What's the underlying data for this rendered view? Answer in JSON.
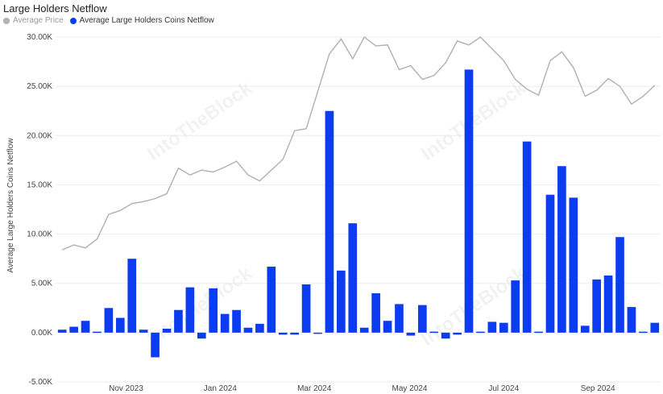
{
  "chart_data": {
    "type": "bar",
    "title": "Large Holders Netflow",
    "ylabel": "Average Large Holders Coins Netflow",
    "ylim": [
      -5000,
      30000
    ],
    "y_ticks": [
      "-5.00K",
      "0.00K",
      "5.00K",
      "10.00K",
      "15.00K",
      "20.00K",
      "25.00K",
      "30.00K"
    ],
    "y_tick_values": [
      -5000,
      0,
      5000,
      10000,
      15000,
      20000,
      25000,
      30000
    ],
    "x_ticks": [
      "Nov 2023",
      "Jan 2024",
      "Mar 2024",
      "May 2024",
      "Jul 2024",
      "Sep 2024"
    ],
    "x_tick_index": [
      5.5,
      13.6,
      21.7,
      29.9,
      38.0,
      46.1
    ],
    "legend": [
      {
        "name": "Average Price",
        "color": "#b0b0b0"
      },
      {
        "name": "Average Large Holders Coins Netflow",
        "color": "#0b3cf0"
      }
    ],
    "watermark": "IntoTheBlock",
    "series": [
      {
        "name": "Average Large Holders Coins Netflow",
        "kind": "bar",
        "color": "#0b3cf0",
        "values": [
          300,
          600,
          1200,
          100,
          2500,
          1500,
          7500,
          300,
          -2500,
          400,
          2300,
          4600,
          -600,
          4500,
          1900,
          2300,
          500,
          900,
          6700,
          -200,
          -200,
          4900,
          -100,
          22500,
          6300,
          11100,
          500,
          4000,
          1200,
          2900,
          -300,
          2800,
          100,
          -600,
          -200,
          26700,
          100,
          1100,
          1000,
          5300,
          19400,
          100,
          14000,
          16900,
          13700,
          700,
          5400,
          5800,
          9700,
          2600,
          100,
          1000
        ]
      },
      {
        "name": "Average Price",
        "kind": "line",
        "color": "#b0b0b0",
        "values": [
          8400,
          8900,
          8600,
          9500,
          12000,
          12400,
          13100,
          13300,
          13600,
          14100,
          16700,
          16000,
          16500,
          16300,
          16800,
          17400,
          16000,
          15400,
          16500,
          17600,
          20500,
          20700,
          24500,
          28300,
          29800,
          27800,
          30000,
          29100,
          29200,
          26700,
          27100,
          25700,
          26100,
          27400,
          29600,
          29200,
          30000,
          28800,
          27600,
          25700,
          24700,
          24100,
          27600,
          28500,
          26900,
          24000,
          24600,
          25800,
          25000,
          23200,
          24000,
          25100
        ]
      }
    ]
  }
}
